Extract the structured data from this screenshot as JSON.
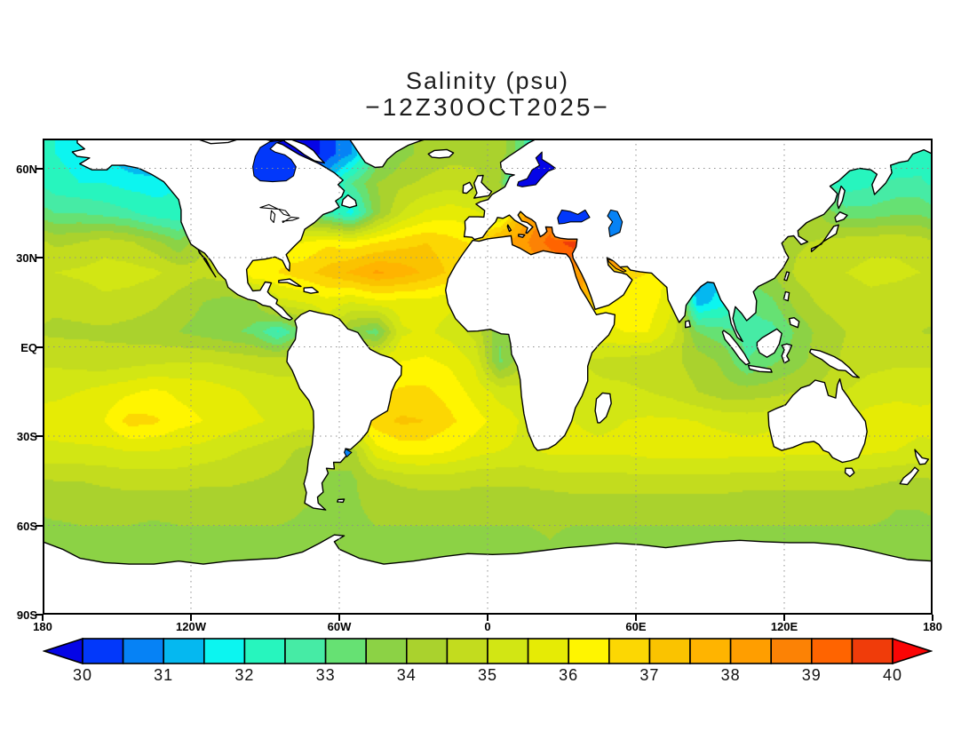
{
  "title": {
    "line1": "Salinity (psu)",
    "line2": "−12Z30OCT2025−"
  },
  "y_axis": {
    "ticks": [
      {
        "label": "60N",
        "lat": 60
      },
      {
        "label": "30N",
        "lat": 30
      },
      {
        "label": "EQ",
        "lat": 0
      },
      {
        "label": "30S",
        "lat": -30
      },
      {
        "label": "60S",
        "lat": -60
      },
      {
        "label": "90S",
        "lat": -90
      }
    ]
  },
  "x_axis": {
    "ticks": [
      {
        "label": "180",
        "lon": -180
      },
      {
        "label": "120W",
        "lon": -120
      },
      {
        "label": "60W",
        "lon": -60
      },
      {
        "label": "0",
        "lon": 0
      },
      {
        "label": "60E",
        "lon": 60
      },
      {
        "label": "120E",
        "lon": 120
      },
      {
        "label": "180",
        "lon": 180
      }
    ]
  },
  "colorbar": {
    "labels": [
      "30",
      "31",
      "32",
      "33",
      "34",
      "35",
      "36",
      "37",
      "38",
      "39",
      "40"
    ],
    "min": 30,
    "max": 40,
    "step": 0.5,
    "arrow_low_color": "#0505e6",
    "arrow_high_color": "#fa0505",
    "box_colors": [
      "#0238fa",
      "#0682f5",
      "#05b8f0",
      "#0cf5f0",
      "#27f5be",
      "#46eba5",
      "#66e173",
      "#8cd245",
      "#aad22d",
      "#c3dc1e",
      "#d2e614",
      "#e6eb05",
      "#fff500",
      "#fcd703",
      "#fac300",
      "#ffb400",
      "#ff9e00",
      "#fc8205",
      "#ff6400",
      "#f03c0a"
    ]
  },
  "chart_data": {
    "type": "heatmap",
    "title": "Salinity (psu)",
    "subtitle": "−12Z30OCT2025−",
    "units": "psu",
    "lon_range": [
      -180,
      180
    ],
    "lat_range": [
      -90,
      70
    ],
    "legend_position": "bottom",
    "grid_on": true,
    "gridlines": {
      "lat": [
        60,
        30,
        0,
        -30,
        -60
      ],
      "lon": [
        -120,
        -60,
        0,
        60,
        120
      ]
    },
    "palette_levels": [
      30,
      30.5,
      31,
      31.5,
      32,
      32.5,
      33,
      33.5,
      34,
      34.5,
      35,
      35.5,
      36,
      36.5,
      37,
      37.5,
      38,
      38.5,
      39,
      39.5,
      40
    ],
    "palette_colors": [
      "#0238fa",
      "#0682f5",
      "#05b8f0",
      "#0cf5f0",
      "#27f5be",
      "#46eba5",
      "#66e173",
      "#8cd245",
      "#aad22d",
      "#c3dc1e",
      "#d2e614",
      "#e6eb05",
      "#fff500",
      "#fcd703",
      "#fac300",
      "#ffb400",
      "#ff9e00",
      "#fc8205",
      "#ff6400",
      "#f03c0a"
    ],
    "below_min_color": "#0505e6",
    "above_max_color": "#fa0505",
    "lon_centers": [
      -175,
      -165,
      -155,
      -145,
      -135,
      -125,
      -115,
      -105,
      -95,
      -85,
      -75,
      -65,
      -55,
      -45,
      -35,
      -25,
      -15,
      -5,
      5,
      15,
      25,
      35,
      45,
      55,
      65,
      75,
      85,
      95,
      105,
      115,
      125,
      135,
      145,
      155,
      165,
      175
    ],
    "lat_centers": [
      65,
      55,
      45,
      35,
      25,
      15,
      5,
      -5,
      -15,
      -25,
      -35,
      -45,
      -55,
      -65,
      -75,
      -85
    ],
    "values": [
      [
        32,
        31.8,
        31.5,
        31,
        30.5,
        29,
        29,
        29,
        29.2,
        29.2,
        29.5,
        30.2,
        31,
        33,
        33.8,
        34.2,
        34.3,
        34.4,
        34.3,
        33,
        29.5,
        32,
        33,
        33,
        32.5,
        32,
        32,
        32,
        31.5,
        31.5,
        31.5,
        31.5,
        32,
        32,
        32,
        32.2
      ],
      [
        32.2,
        32,
        32,
        31.8,
        31.8,
        32,
        31,
        30,
        29.8,
        29.8,
        30.5,
        31.5,
        33,
        34,
        34.4,
        34.6,
        34.8,
        34.6,
        34,
        30,
        31,
        33,
        33,
        33,
        33,
        33,
        32.8,
        32.8,
        32.8,
        32.8,
        32.5,
        32.5,
        32.2,
        32.4,
        32.6,
        32.6
      ],
      [
        33,
        33,
        32.8,
        32.6,
        32.2,
        32.1,
        33,
        34,
        34,
        34,
        33.5,
        32.6,
        31.8,
        33.8,
        35,
        35.6,
        35.8,
        35.6,
        35.2,
        38,
        38.5,
        30.5,
        31,
        34,
        34,
        34,
        34,
        34,
        34,
        34,
        33.8,
        33.9,
        33.2,
        33.2,
        33.4,
        33.4
      ],
      [
        34.4,
        34.5,
        34.8,
        34.6,
        34.2,
        33.6,
        34.5,
        35,
        35.5,
        36.2,
        36,
        36.4,
        36.2,
        36.5,
        36.8,
        37,
        36.7,
        36.4,
        38,
        38.4,
        39.2,
        39.8,
        37,
        36.8,
        36.4,
        35,
        34,
        33.5,
        34,
        34.2,
        34.4,
        34.6,
        34.8,
        34.9,
        34.9,
        34.8
      ],
      [
        35,
        35.1,
        35.2,
        35.2,
        35.1,
        34.8,
        34.6,
        34.8,
        36.5,
        36.5,
        36.8,
        37.2,
        37.6,
        38.1,
        37.8,
        37.4,
        36.9,
        37,
        37.8,
        38,
        38.2,
        38.3,
        38,
        36.6,
        36.5,
        35.8,
        30.6,
        31.5,
        33.8,
        34,
        34.6,
        34.9,
        35,
        35.1,
        35.1,
        35
      ],
      [
        34.6,
        34.7,
        34.9,
        34.8,
        34.6,
        34.3,
        34,
        33.8,
        33.8,
        35.3,
        35.5,
        35.8,
        35.5,
        35.8,
        35.8,
        35.8,
        35.6,
        35.5,
        35.5,
        36,
        37,
        38.4,
        36.4,
        36.3,
        36.3,
        35.6,
        31.2,
        31.8,
        33,
        33.4,
        34.2,
        34.6,
        34.8,
        34.9,
        34.8,
        34.7
      ],
      [
        34.4,
        34.4,
        34.4,
        34.3,
        34.2,
        34,
        33.8,
        33.6,
        33.4,
        32.4,
        33.5,
        35.2,
        33.8,
        33.2,
        35.4,
        35.6,
        35.3,
        34.8,
        33.6,
        34,
        35,
        35.5,
        35.8,
        36,
        36,
        35.2,
        33.5,
        33.2,
        32.8,
        32.8,
        33.6,
        34.2,
        34.5,
        34.6,
        34.6,
        34.5
      ],
      [
        34.9,
        34.8,
        34.7,
        34.8,
        34.9,
        35,
        35,
        34.9,
        34.8,
        34.8,
        35,
        35.5,
        35.5,
        35.8,
        36,
        36.1,
        35.9,
        35.4,
        33.4,
        34.5,
        35,
        35,
        34.9,
        34.8,
        34.7,
        34.6,
        34.3,
        33.9,
        33,
        33.4,
        33.8,
        34.3,
        34.6,
        34.8,
        34.9,
        34.9
      ],
      [
        35.4,
        35.5,
        35.7,
        35.9,
        36.1,
        35.9,
        35.8,
        35.6,
        35.4,
        35.2,
        35,
        35.5,
        36,
        36.4,
        36.6,
        36.6,
        36.3,
        35.8,
        35.3,
        35.2,
        35.5,
        35.3,
        35.1,
        35.1,
        35,
        34.8,
        34.5,
        34.2,
        34.2,
        34.3,
        34.5,
        34.6,
        35,
        35.3,
        35.4,
        35.4
      ],
      [
        35.7,
        35.8,
        36,
        36.7,
        36.6,
        36.2,
        36,
        35.8,
        35.6,
        35.4,
        35.2,
        35.5,
        36,
        36.8,
        37.1,
        37,
        36.6,
        36.2,
        35.8,
        35.4,
        35.5,
        35.5,
        35.4,
        35.5,
        35.6,
        35.6,
        35.5,
        35.4,
        35.3,
        35.4,
        35.5,
        35.6,
        35.6,
        35.7,
        35.7,
        35.6
      ],
      [
        35.4,
        35.4,
        35.4,
        35.5,
        35.5,
        35.4,
        35.3,
        35.1,
        34.9,
        34.7,
        34.4,
        34.2,
        34.2,
        35.8,
        36.2,
        36.2,
        36,
        35.7,
        35.5,
        35.4,
        35.6,
        35.6,
        35.6,
        35.6,
        35.7,
        35.7,
        35.7,
        35.7,
        35.7,
        35.7,
        35.6,
        35.6,
        35.6,
        35.6,
        35.5,
        35.4
      ],
      [
        34.5,
        34.5,
        34.6,
        34.7,
        34.7,
        34.7,
        34.6,
        34.6,
        34.5,
        34.4,
        34.2,
        33.9,
        33.9,
        34.4,
        34.6,
        34.7,
        34.7,
        34.6,
        34.6,
        34.6,
        34.7,
        34.8,
        34.8,
        34.8,
        34.8,
        34.8,
        34.8,
        34.8,
        34.7,
        34.7,
        34.7,
        34.7,
        34.7,
        34.6,
        34.5,
        34.4
      ],
      [
        34.1,
        34.1,
        34.1,
        34.1,
        34.1,
        34.1,
        34.1,
        34.1,
        34.1,
        34.1,
        34,
        33.9,
        33.9,
        34.1,
        34.1,
        34.1,
        34.1,
        34.1,
        34.1,
        34.1,
        34.1,
        34.1,
        34.1,
        34.1,
        34.1,
        34.1,
        34.1,
        34.1,
        34.1,
        34.1,
        34.1,
        34.1,
        34.1,
        34.1,
        34,
        34
      ],
      [
        33.8,
        33.9,
        33.9,
        33.9,
        33.8,
        33.9,
        33.9,
        33.9,
        33.9,
        33.9,
        33.9,
        33.9,
        33.9,
        33.9,
        33.9,
        33.9,
        33.9,
        33.9,
        33.9,
        33.9,
        34,
        33.9,
        33.9,
        33.9,
        33.9,
        33.9,
        33.9,
        33.9,
        33.9,
        33.9,
        33.9,
        33.9,
        33.9,
        33.9,
        33.9,
        33.8
      ],
      [
        33.8,
        33.8,
        33.8,
        33.8,
        33.8,
        33.8,
        33.8,
        33.8,
        33.8,
        33.8,
        33.8,
        33.8,
        33.8,
        33.8,
        33.8,
        33.8,
        33.8,
        33.8,
        33.8,
        33.8,
        33.8,
        33.8,
        33.8,
        33.8,
        33.8,
        33.8,
        33.8,
        33.8,
        33.8,
        33.8,
        33.8,
        33.8,
        33.8,
        33.8,
        33.8,
        33.8
      ],
      [
        33.8,
        33.8,
        33.8,
        33.8,
        33.8,
        33.8,
        33.8,
        33.8,
        33.8,
        33.8,
        33.8,
        33.8,
        33.8,
        33.8,
        33.8,
        33.8,
        33.8,
        33.8,
        33.8,
        33.8,
        33.8,
        33.8,
        33.8,
        33.8,
        33.8,
        33.8,
        33.8,
        33.8,
        33.8,
        33.8,
        33.8,
        33.8,
        33.8,
        33.8,
        33.8,
        33.8
      ]
    ],
    "marginal_seas": [
      {
        "name": "Hudson Bay",
        "approx_value": 30.2,
        "color": "#0238fa"
      },
      {
        "name": "Baltic Sea",
        "approx_value": 29.5,
        "color": "#0505e6"
      },
      {
        "name": "Black Sea",
        "approx_value": 30.3,
        "color": "#0238fa"
      },
      {
        "name": "Caspian Sea",
        "approx_value": 30.8,
        "color": "#0682f5"
      },
      {
        "name": "Persian Gulf",
        "approx_value": 38.2,
        "color": "#ff9e00"
      },
      {
        "name": "Rio de la Plata",
        "approx_value": 30.8,
        "color": "#0682f5"
      }
    ]
  }
}
